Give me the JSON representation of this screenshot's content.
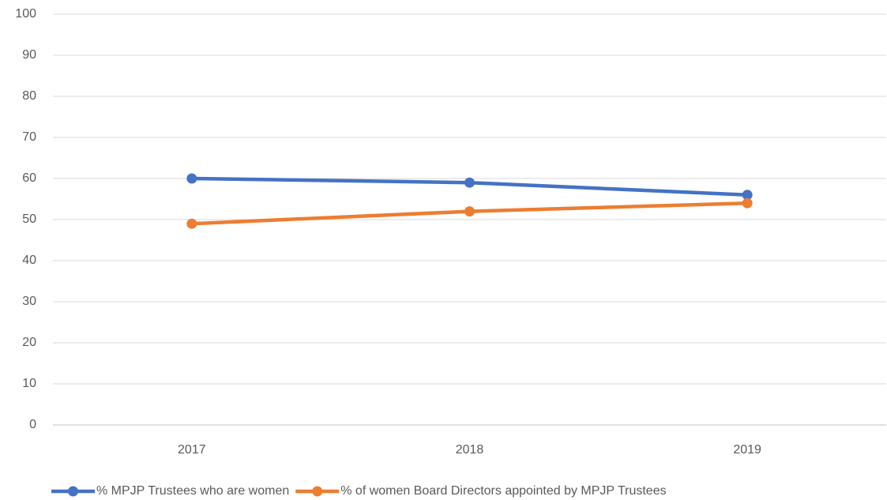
{
  "chart_data": {
    "type": "line",
    "categories": [
      "2017",
      "2018",
      "2019"
    ],
    "series": [
      {
        "name": "% MPJP Trustees who are women",
        "color": "#4472c4",
        "values": [
          60,
          59,
          56
        ]
      },
      {
        "name": "% of women Board Directors appointed by MPJP Trustees",
        "color": "#ed7d31",
        "values": [
          49,
          52,
          54
        ]
      }
    ],
    "ylim": [
      0,
      100
    ],
    "yticks": [
      0,
      10,
      20,
      30,
      40,
      50,
      60,
      70,
      80,
      90,
      100
    ],
    "grid": true,
    "legend": "bottom"
  }
}
